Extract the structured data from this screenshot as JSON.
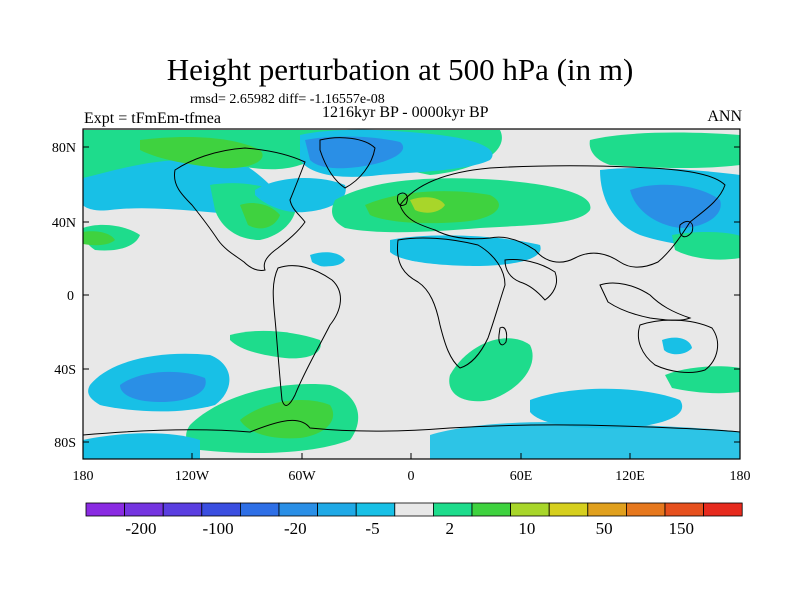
{
  "title": "Height perturbation at 500 hPa (in m)",
  "stats": "rmsd= 2.65982 diff= -1.16557e-08",
  "period": "1216kyr BP - 0000kyr BP",
  "experiment": "Expt = tFmEm-tfmea",
  "season": "ANN",
  "lat_labels": [
    "80N",
    "40N",
    "0",
    "40S",
    "80S"
  ],
  "lon_labels": [
    "180",
    "120W",
    "60W",
    "0",
    "60E",
    "120E",
    "180"
  ],
  "colorbar": {
    "colors": [
      "#8a2be2",
      "#7434e0",
      "#5a3ee0",
      "#3a4ee0",
      "#2e6fe6",
      "#2a8fe6",
      "#1fa9e6",
      "#18c0e6",
      "#e8e8e8",
      "#1edc8c",
      "#3fd23f",
      "#a8d62a",
      "#d6cf1e",
      "#e0a01e",
      "#e6781e",
      "#e6501e",
      "#e62a1e"
    ],
    "labels": [
      "-200",
      "-100",
      "-20",
      "-5",
      "2",
      "10",
      "50",
      "150"
    ]
  },
  "map_colors": {
    "neutral": "#e8e8e8",
    "neg_light": "#18c0e6",
    "neg_mid": "#2a8fe6",
    "pos_light": "#1edc8c",
    "pos_mid": "#3fd23f",
    "pos_strong": "#a8d62a"
  }
}
